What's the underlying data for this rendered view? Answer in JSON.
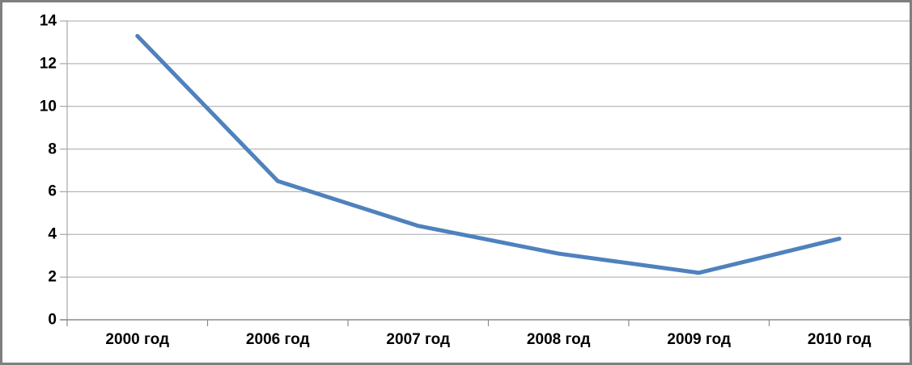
{
  "chart_data": {
    "type": "line",
    "title": "",
    "xlabel": "",
    "ylabel": "",
    "categories": [
      "2000 год",
      "2006 год",
      "2007 год",
      "2008 год",
      "2009 год",
      "2010 год"
    ],
    "series": [
      {
        "name": "",
        "values": [
          13.3,
          6.5,
          4.4,
          3.1,
          2.2,
          3.8
        ]
      }
    ],
    "ylim": [
      0,
      14
    ],
    "yticks": [
      0,
      2,
      4,
      6,
      8,
      10,
      12,
      14
    ],
    "grid": true,
    "legend": false,
    "colors": {
      "line": "#4f81bd",
      "gridline": "#a6a6a6",
      "axis": "#8c8c8c",
      "text": "#000000",
      "frame_border": "#7f7f7f",
      "background": "#ffffff"
    }
  }
}
